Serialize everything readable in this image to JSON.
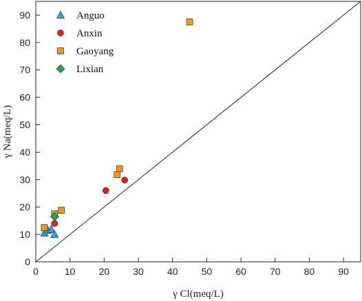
{
  "chart_data": {
    "type": "scatter",
    "xlabel": "γ Cl(meq/L)",
    "ylabel": "γ Na(meq/L)",
    "xlim": [
      0,
      95
    ],
    "ylim": [
      0,
      95
    ],
    "xticks": [
      "0",
      "10",
      "20",
      "30",
      "40",
      "50",
      "60",
      "70",
      "80",
      "90"
    ],
    "yticks": [
      "0",
      "10",
      "20",
      "30",
      "40",
      "50",
      "60",
      "70",
      "80",
      "90"
    ],
    "grid": false,
    "legend_position": "top-left",
    "reference_line": "1:1",
    "series": [
      {
        "name": "Anguo",
        "marker": "triangle",
        "color": "#2aa6e0",
        "points": [
          [
            2.5,
            10.5
          ],
          [
            3.5,
            11.5
          ],
          [
            4.5,
            11.8
          ],
          [
            5.5,
            10.0
          ]
        ]
      },
      {
        "name": "Anxin",
        "marker": "circle",
        "color": "#e0202a",
        "points": [
          [
            5.5,
            14.0
          ],
          [
            20.5,
            26.0
          ],
          [
            26.0,
            29.8
          ]
        ]
      },
      {
        "name": "Gaoyang",
        "marker": "square",
        "color": "#f39423",
        "points": [
          [
            2.5,
            12.5
          ],
          [
            5.5,
            17.5
          ],
          [
            7.5,
            18.8
          ],
          [
            23.8,
            31.8
          ],
          [
            24.5,
            34.0
          ],
          [
            45.0,
            87.5
          ]
        ]
      },
      {
        "name": "Lixian",
        "marker": "diamond",
        "color": "#1ea84a",
        "points": [
          [
            5.5,
            16.5
          ]
        ]
      }
    ]
  }
}
